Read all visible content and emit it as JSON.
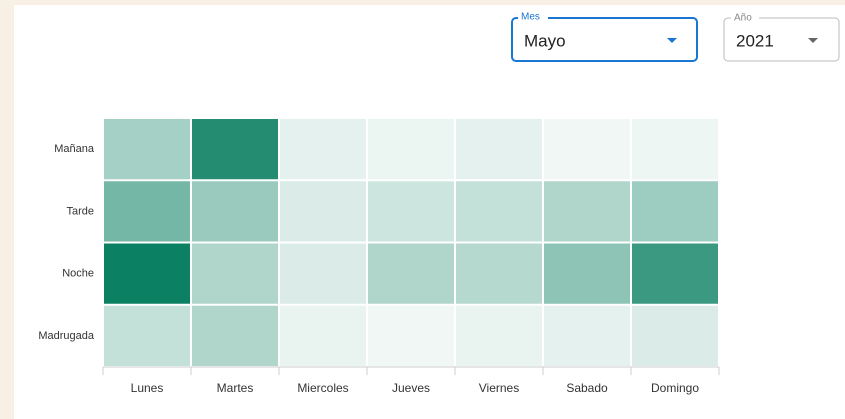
{
  "controls": {
    "month": {
      "label": "Mes",
      "value": "Mayo"
    },
    "year": {
      "label": "Año",
      "value": "2021"
    }
  },
  "chart_data": {
    "type": "heatmap",
    "categories": [
      "Lunes",
      "Martes",
      "Miercoles",
      "Jueves",
      "Viernes",
      "Sabado",
      "Domingo"
    ],
    "rows": [
      "Mañana",
      "Tarde",
      "Noche",
      "Madrugada"
    ],
    "values": [
      [
        35,
        90,
        8,
        5,
        8,
        3,
        4
      ],
      [
        55,
        40,
        12,
        18,
        22,
        30,
        38
      ],
      [
        100,
        30,
        12,
        30,
        28,
        45,
        80
      ],
      [
        22,
        30,
        6,
        3,
        6,
        8,
        12
      ]
    ],
    "zlim": [
      0,
      100
    ],
    "colors": [
      "#f7fbfa",
      "#0b8062"
    ]
  }
}
